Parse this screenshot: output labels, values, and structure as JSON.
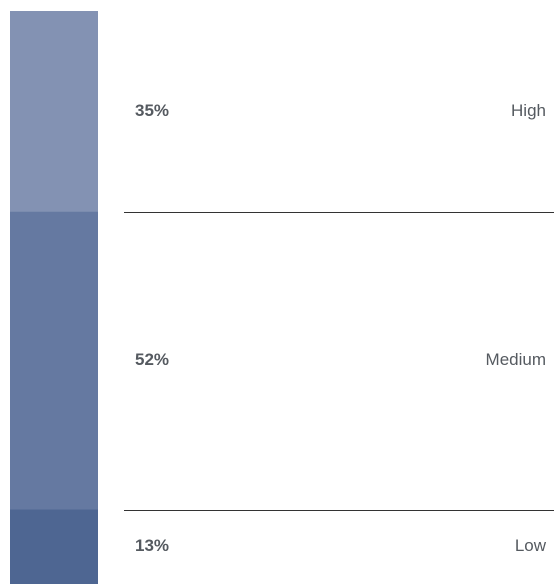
{
  "chart_data": {
    "type": "bar",
    "orientation": "stacked-vertical",
    "categories": [
      "High",
      "Medium",
      "Low"
    ],
    "values": [
      35,
      52,
      13
    ],
    "value_labels": [
      "35%",
      "52%",
      "13%"
    ],
    "unit": "%",
    "colors": [
      "#8392b3",
      "#6579a1",
      "#4e6692"
    ],
    "title": "",
    "xlabel": "",
    "ylabel": "",
    "legend": "none",
    "grid": false
  }
}
